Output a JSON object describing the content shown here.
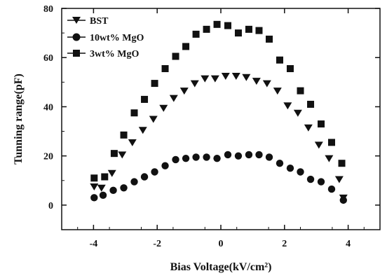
{
  "chart_data": {
    "type": "scatter",
    "title": "",
    "xlabel": "Bias Voltage(kV/cm²)",
    "ylabel": "Tunning range(pF)",
    "xlim": [
      -5.0,
      5.0
    ],
    "ylim": [
      -10,
      80
    ],
    "xticks": [
      -4,
      -2,
      0,
      2,
      4
    ],
    "xtick_labels": [
      "-4",
      "-2",
      "0",
      "2",
      "4"
    ],
    "yticks": [
      0,
      20,
      40,
      60,
      80
    ],
    "ytick_labels": [
      "0",
      "20",
      "40",
      "60",
      "80"
    ],
    "grid": false,
    "legend_position": "top-left",
    "series": [
      {
        "name": "BST",
        "marker": "triangle-down",
        "x": [
          -3.98,
          -3.75,
          -3.42,
          -3.1,
          -2.78,
          -2.45,
          -2.12,
          -1.8,
          -1.48,
          -1.15,
          -0.82,
          -0.5,
          -0.18,
          0.15,
          0.48,
          0.8,
          1.12,
          1.45,
          1.78,
          2.1,
          2.42,
          2.75,
          3.08,
          3.4,
          3.72,
          3.85
        ],
        "y": [
          7.5,
          7.0,
          13.0,
          20.5,
          25.5,
          30.5,
          35.0,
          39.5,
          43.5,
          46.5,
          49.5,
          51.5,
          51.5,
          52.5,
          52.5,
          52.0,
          50.5,
          49.5,
          46.5,
          40.5,
          37.5,
          31.5,
          24.5,
          19.0,
          10.5,
          3.0
        ]
      },
      {
        "name": "10wt% MgO",
        "marker": "circle",
        "x": [
          -3.98,
          -3.7,
          -3.38,
          -3.05,
          -2.72,
          -2.4,
          -2.08,
          -1.75,
          -1.42,
          -1.1,
          -0.78,
          -0.45,
          -0.12,
          0.22,
          0.55,
          0.88,
          1.2,
          1.52,
          1.85,
          2.18,
          2.5,
          2.82,
          3.15,
          3.48,
          3.85
        ],
        "y": [
          3.0,
          4.0,
          6.0,
          7.0,
          9.5,
          11.5,
          13.5,
          16.0,
          18.5,
          19.0,
          19.5,
          19.5,
          19.0,
          20.5,
          20.0,
          20.5,
          20.5,
          19.5,
          17.0,
          15.0,
          13.5,
          10.5,
          9.5,
          6.5,
          2.0
        ]
      },
      {
        "name": "3wt% MgO",
        "marker": "square",
        "x": [
          -3.98,
          -3.65,
          -3.35,
          -3.05,
          -2.72,
          -2.4,
          -2.08,
          -1.75,
          -1.42,
          -1.1,
          -0.78,
          -0.45,
          -0.12,
          0.22,
          0.55,
          0.88,
          1.2,
          1.52,
          1.85,
          2.18,
          2.5,
          2.82,
          3.15,
          3.48,
          3.8
        ],
        "y": [
          11.0,
          11.5,
          21.0,
          28.5,
          37.5,
          43.0,
          49.5,
          55.5,
          60.5,
          64.5,
          69.5,
          71.5,
          73.5,
          73.0,
          70.0,
          71.5,
          71.0,
          67.5,
          59.0,
          55.5,
          46.5,
          41.0,
          33.0,
          25.5,
          17.0
        ]
      }
    ]
  }
}
